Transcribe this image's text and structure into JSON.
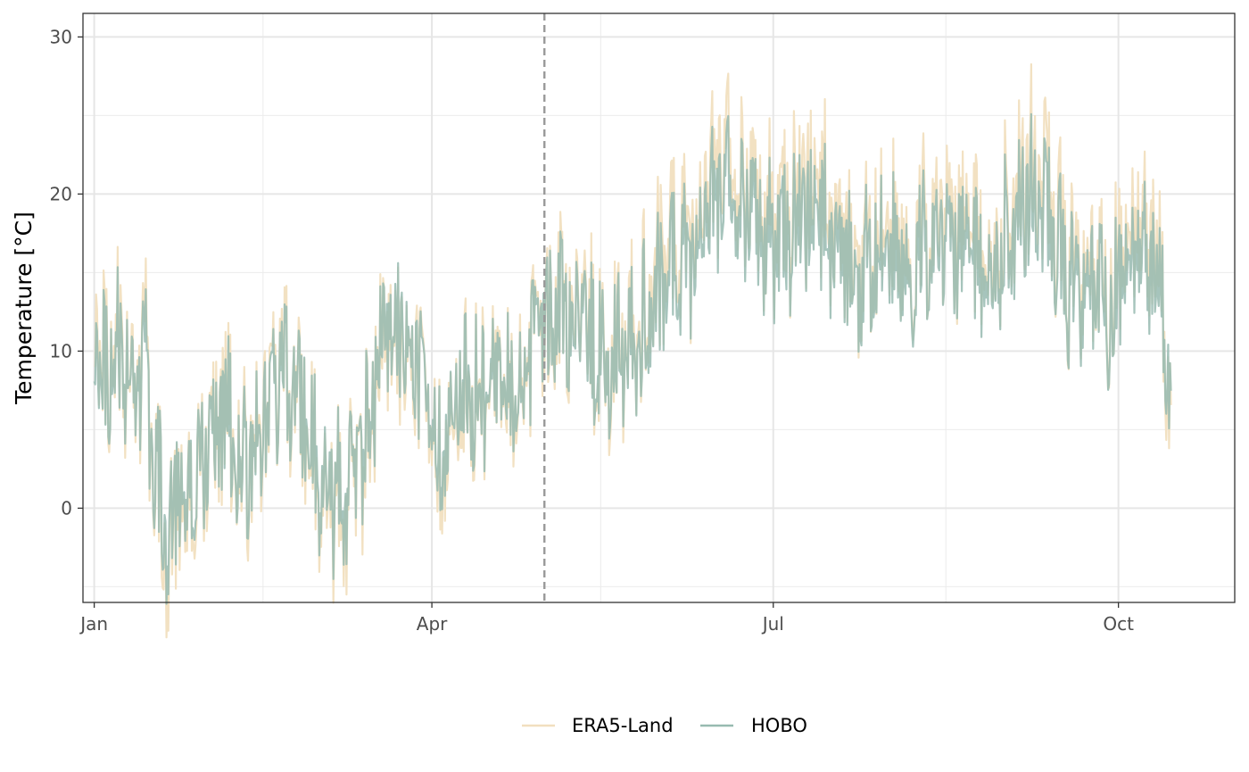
{
  "chart_data": {
    "type": "line",
    "title": "",
    "xlabel": "",
    "ylabel": "Temperature [°C]",
    "x_range": [
      "2022-12-29",
      "2023-11-01"
    ],
    "x_ticks": [
      {
        "date": "2023-01-01",
        "label": "Jan"
      },
      {
        "date": "2023-04-01",
        "label": "Apr"
      },
      {
        "date": "2023-07-01",
        "label": "Jul"
      },
      {
        "date": "2023-10-01",
        "label": "Oct"
      }
    ],
    "x_minor_gridlines": [
      "2023-02-15",
      "2023-05-16",
      "2023-08-16"
    ],
    "ylim": [
      -6,
      31.5
    ],
    "y_ticks": [
      0,
      10,
      20,
      30
    ],
    "y_minor_gridlines": [
      -5,
      5,
      15,
      25
    ],
    "grid": true,
    "legend_position": "bottom",
    "reference_line": {
      "type": "vertical",
      "style": "dashed",
      "date": "2023-05-01",
      "color": "#999999"
    },
    "series": [
      {
        "name": "ERA5-Land",
        "color": "#f1dfbf",
        "anchors": [
          [
            "2023-01-01",
            14.5
          ],
          [
            "2023-01-04",
            8.5
          ],
          [
            "2023-01-08",
            10.5
          ],
          [
            "2023-01-12",
            7.5
          ],
          [
            "2023-01-15",
            9.5
          ],
          [
            "2023-01-17",
            1.0
          ],
          [
            "2023-01-21",
            -1.5
          ],
          [
            "2023-01-25",
            0.5
          ],
          [
            "2023-01-30",
            2.0
          ],
          [
            "2023-02-04",
            6.5
          ],
          [
            "2023-02-10",
            2.5
          ],
          [
            "2023-02-15",
            6.5
          ],
          [
            "2023-02-20",
            9.5
          ],
          [
            "2023-02-26",
            7.0
          ],
          [
            "2023-03-03",
            1.0
          ],
          [
            "2023-03-08",
            0.5
          ],
          [
            "2023-03-13",
            2.5
          ],
          [
            "2023-03-18",
            8.5
          ],
          [
            "2023-03-24",
            11.0
          ],
          [
            "2023-03-30",
            7.5
          ],
          [
            "2023-04-02",
            2.5
          ],
          [
            "2023-04-07",
            6.0
          ],
          [
            "2023-04-13",
            7.5
          ],
          [
            "2023-04-19",
            8.5
          ],
          [
            "2023-04-25",
            7.5
          ],
          [
            "2023-05-01",
            10.5
          ],
          [
            "2023-05-07",
            13.5
          ],
          [
            "2023-05-13",
            11.5
          ],
          [
            "2023-05-18",
            9.0
          ],
          [
            "2023-05-24",
            10.5
          ],
          [
            "2023-05-30",
            13.5
          ],
          [
            "2023-06-05",
            16.5
          ],
          [
            "2023-06-10",
            17.0
          ],
          [
            "2023-06-14",
            20.0
          ],
          [
            "2023-06-18",
            22.5
          ],
          [
            "2023-06-21",
            21.5
          ],
          [
            "2023-06-26",
            19.0
          ],
          [
            "2023-07-01",
            17.0
          ],
          [
            "2023-07-08",
            20.5
          ],
          [
            "2023-07-13",
            19.5
          ],
          [
            "2023-07-18",
            18.0
          ],
          [
            "2023-07-24",
            16.0
          ],
          [
            "2023-07-30",
            17.0
          ],
          [
            "2023-08-05",
            16.5
          ],
          [
            "2023-08-10",
            17.0
          ],
          [
            "2023-08-16",
            19.5
          ],
          [
            "2023-08-21",
            18.0
          ],
          [
            "2023-08-26",
            15.5
          ],
          [
            "2023-08-31",
            17.5
          ],
          [
            "2023-09-05",
            20.5
          ],
          [
            "2023-09-10",
            22.5
          ],
          [
            "2023-09-15",
            17.0
          ],
          [
            "2023-09-20",
            14.5
          ],
          [
            "2023-09-25",
            16.0
          ],
          [
            "2023-09-30",
            13.5
          ],
          [
            "2023-10-04",
            18.0
          ],
          [
            "2023-10-08",
            17.0
          ],
          [
            "2023-10-12",
            16.5
          ],
          [
            "2023-10-14",
            10.0
          ],
          [
            "2023-10-15",
            6.5
          ]
        ]
      },
      {
        "name": "HOBO",
        "color": "#97bab0",
        "anchors": [
          [
            "2023-01-01",
            12.5
          ],
          [
            "2023-01-04",
            8.0
          ],
          [
            "2023-01-08",
            10.0
          ],
          [
            "2023-01-12",
            7.5
          ],
          [
            "2023-01-15",
            9.0
          ],
          [
            "2023-01-17",
            1.5
          ],
          [
            "2023-01-21",
            -0.5
          ],
          [
            "2023-01-25",
            1.0
          ],
          [
            "2023-01-30",
            2.5
          ],
          [
            "2023-02-04",
            6.0
          ],
          [
            "2023-02-10",
            2.5
          ],
          [
            "2023-02-15",
            6.0
          ],
          [
            "2023-02-20",
            9.0
          ],
          [
            "2023-02-26",
            7.0
          ],
          [
            "2023-03-03",
            1.5
          ],
          [
            "2023-03-08",
            1.0
          ],
          [
            "2023-03-13",
            3.0
          ],
          [
            "2023-03-18",
            9.0
          ],
          [
            "2023-03-24",
            11.5
          ],
          [
            "2023-03-30",
            7.5
          ],
          [
            "2023-04-02",
            3.0
          ],
          [
            "2023-04-07",
            6.5
          ],
          [
            "2023-04-13",
            7.5
          ],
          [
            "2023-04-19",
            8.5
          ],
          [
            "2023-04-25",
            7.5
          ],
          [
            "2023-05-01",
            11.0
          ],
          [
            "2023-05-07",
            13.0
          ],
          [
            "2023-05-13",
            11.0
          ],
          [
            "2023-05-18",
            9.0
          ],
          [
            "2023-05-24",
            10.0
          ],
          [
            "2023-05-30",
            12.5
          ],
          [
            "2023-06-05",
            15.0
          ],
          [
            "2023-06-10",
            16.0
          ],
          [
            "2023-06-14",
            18.5
          ],
          [
            "2023-06-18",
            20.5
          ],
          [
            "2023-06-21",
            20.0
          ],
          [
            "2023-06-26",
            18.0
          ],
          [
            "2023-07-01",
            16.0
          ],
          [
            "2023-07-08",
            19.0
          ],
          [
            "2023-07-13",
            18.0
          ],
          [
            "2023-07-18",
            17.0
          ],
          [
            "2023-07-24",
            15.0
          ],
          [
            "2023-07-30",
            16.0
          ],
          [
            "2023-08-05",
            15.5
          ],
          [
            "2023-08-10",
            16.0
          ],
          [
            "2023-08-16",
            18.0
          ],
          [
            "2023-08-21",
            17.0
          ],
          [
            "2023-08-26",
            14.5
          ],
          [
            "2023-08-31",
            16.5
          ],
          [
            "2023-09-05",
            19.0
          ],
          [
            "2023-09-10",
            20.5
          ],
          [
            "2023-09-15",
            16.0
          ],
          [
            "2023-09-20",
            13.5
          ],
          [
            "2023-09-25",
            15.0
          ],
          [
            "2023-09-30",
            12.5
          ],
          [
            "2023-10-04",
            16.5
          ],
          [
            "2023-10-08",
            15.5
          ],
          [
            "2023-10-12",
            15.0
          ],
          [
            "2023-10-14",
            10.5
          ],
          [
            "2023-10-15",
            7.0
          ]
        ]
      }
    ]
  }
}
